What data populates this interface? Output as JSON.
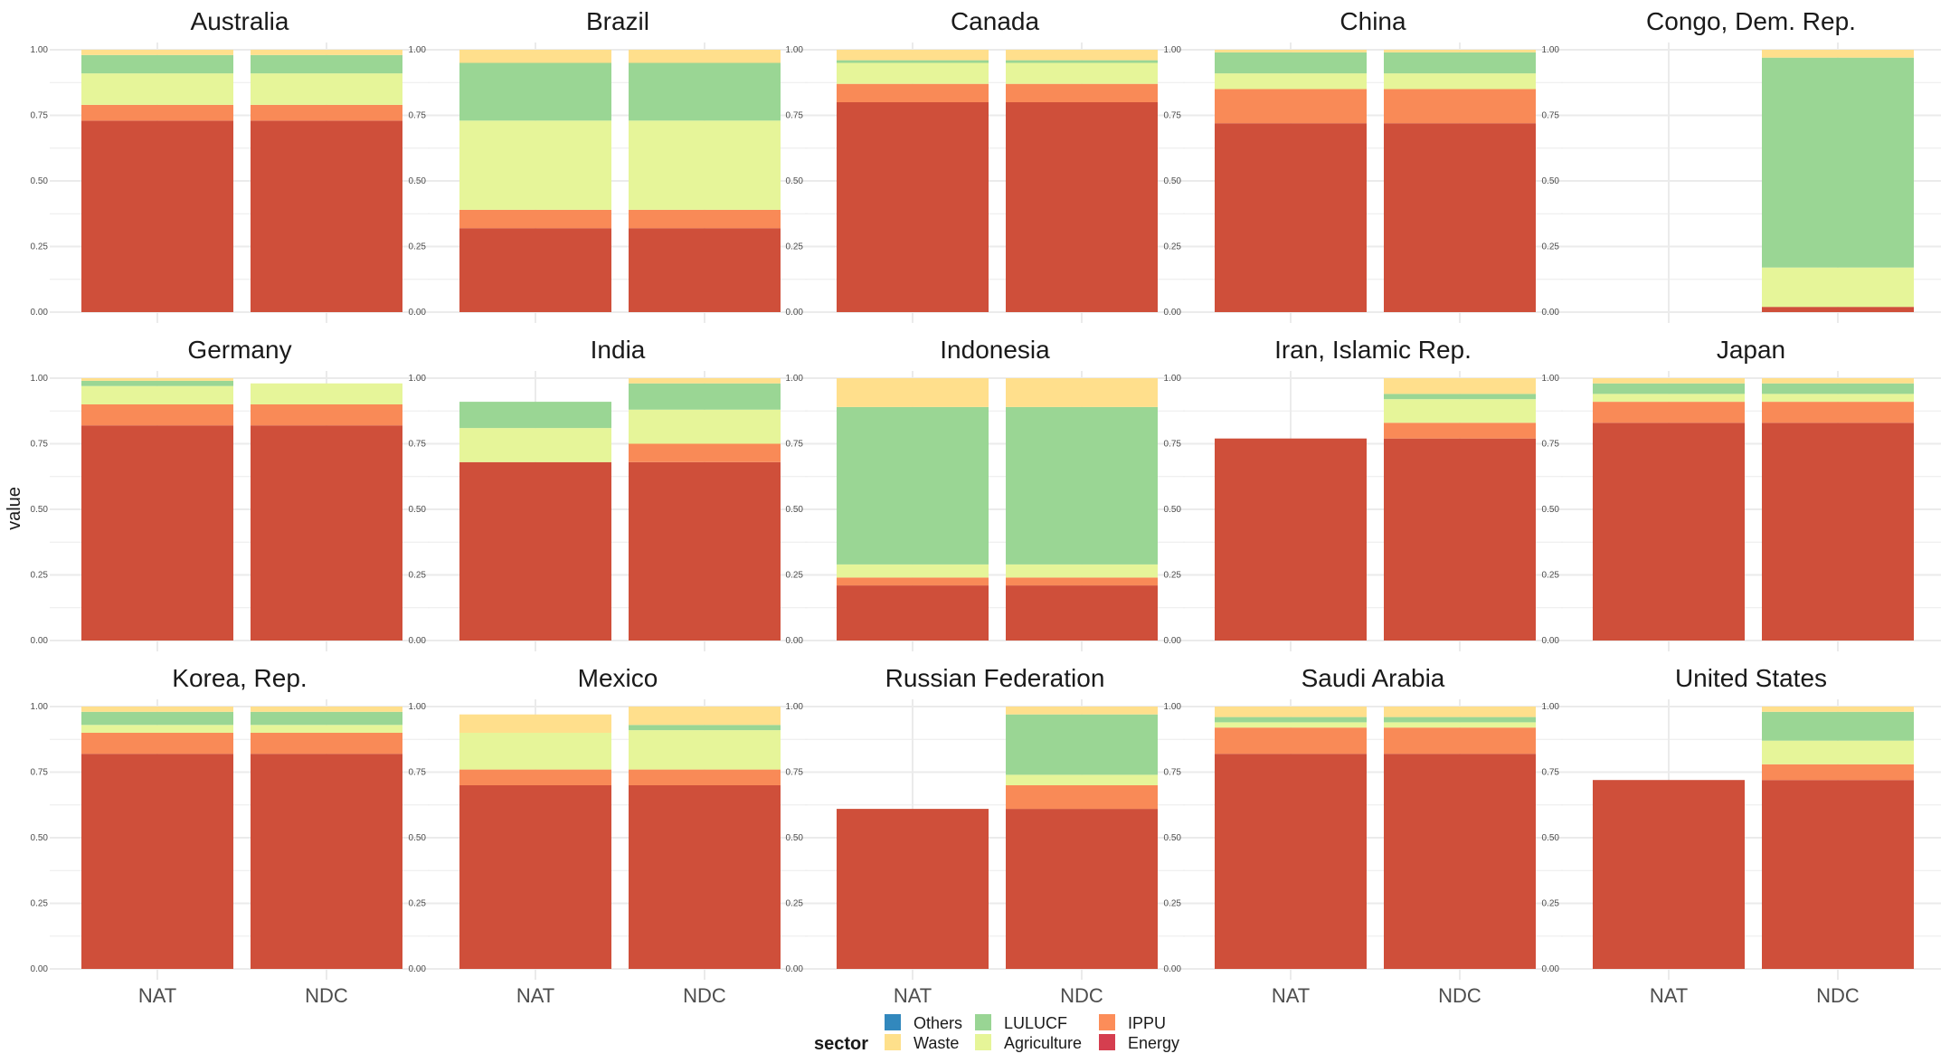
{
  "chart_data": {
    "type": "bar",
    "stacked": true,
    "facet_layout": "5 columns x 3 rows",
    "ylabel": "value",
    "ylim": [
      0,
      1
    ],
    "y_ticks": [
      "0.00",
      "0.25",
      "0.50",
      "0.75",
      "1.00"
    ],
    "x_categories": [
      "NAT",
      "NDC"
    ],
    "grid": true,
    "legend": {
      "title": "sector",
      "position": "bottom",
      "items": [
        {
          "key": "Others",
          "label": "Others",
          "color": "#3288BD"
        },
        {
          "key": "Waste",
          "label": "Waste",
          "color": "#FEE08B"
        },
        {
          "key": "LULUCF",
          "label": "LULUCF",
          "color": "#99D594"
        },
        {
          "key": "Agriculture",
          "label": "Agriculture",
          "color": "#E6F598"
        },
        {
          "key": "IPPU",
          "label": "IPPU",
          "color": "#FC8D59"
        },
        {
          "key": "Energy",
          "label": "Energy",
          "color": "#D53E4F"
        }
      ]
    },
    "stack_order_bottom_to_top": [
      "Energy",
      "IPPU",
      "Agriculture",
      "LULUCF",
      "Waste",
      "Others"
    ],
    "colors": {
      "Energy": "#CF4F3A",
      "IPPU": "#F98A57",
      "Agriculture": "#E6F599",
      "LULUCF": "#9AD694",
      "Waste": "#FFDF8C",
      "Others": "#3288BD"
    },
    "facets": [
      {
        "title": "Australia",
        "NAT": {
          "Energy": 0.73,
          "IPPU": 0.06,
          "Agriculture": 0.12,
          "LULUCF": 0.07,
          "Waste": 0.02
        },
        "NDC": {
          "Energy": 0.73,
          "IPPU": 0.06,
          "Agriculture": 0.12,
          "LULUCF": 0.07,
          "Waste": 0.02
        }
      },
      {
        "title": "Brazil",
        "NAT": {
          "Energy": 0.32,
          "IPPU": 0.07,
          "Agriculture": 0.34,
          "LULUCF": 0.22,
          "Waste": 0.05
        },
        "NDC": {
          "Energy": 0.32,
          "IPPU": 0.07,
          "Agriculture": 0.34,
          "LULUCF": 0.22,
          "Waste": 0.05
        }
      },
      {
        "title": "Canada",
        "NAT": {
          "Energy": 0.8,
          "IPPU": 0.07,
          "Agriculture": 0.08,
          "LULUCF": 0.01,
          "Waste": 0.04
        },
        "NDC": {
          "Energy": 0.8,
          "IPPU": 0.07,
          "Agriculture": 0.08,
          "LULUCF": 0.01,
          "Waste": 0.04
        }
      },
      {
        "title": "China",
        "NAT": {
          "Energy": 0.72,
          "IPPU": 0.13,
          "Agriculture": 0.06,
          "LULUCF": 0.08,
          "Waste": 0.01
        },
        "NDC": {
          "Energy": 0.72,
          "IPPU": 0.13,
          "Agriculture": 0.06,
          "LULUCF": 0.08,
          "Waste": 0.01
        }
      },
      {
        "title": "Congo, Dem. Rep.",
        "NAT": {},
        "NDC": {
          "Energy": 0.02,
          "IPPU": 0.0,
          "Agriculture": 0.15,
          "LULUCF": 0.8,
          "Waste": 0.03
        }
      },
      {
        "title": "Germany",
        "NAT": {
          "Energy": 0.82,
          "IPPU": 0.08,
          "Agriculture": 0.07,
          "LULUCF": 0.02,
          "Waste": 0.01
        },
        "NDC": {
          "Energy": 0.82,
          "IPPU": 0.08,
          "Agriculture": 0.08,
          "LULUCF": 0.0,
          "Waste": 0.0
        }
      },
      {
        "title": "India",
        "NAT": {
          "Energy": 0.68,
          "IPPU": 0.0,
          "Agriculture": 0.13,
          "LULUCF": 0.1,
          "Waste": 0.0
        },
        "NDC": {
          "Energy": 0.68,
          "IPPU": 0.07,
          "Agriculture": 0.13,
          "LULUCF": 0.1,
          "Waste": 0.02
        }
      },
      {
        "title": "Indonesia",
        "NAT": {
          "Energy": 0.21,
          "IPPU": 0.03,
          "Agriculture": 0.05,
          "LULUCF": 0.6,
          "Waste": 0.11
        },
        "NDC": {
          "Energy": 0.21,
          "IPPU": 0.03,
          "Agriculture": 0.05,
          "LULUCF": 0.6,
          "Waste": 0.11
        }
      },
      {
        "title": "Iran, Islamic Rep.",
        "NAT": {
          "Energy": 0.77
        },
        "NDC": {
          "Energy": 0.77,
          "IPPU": 0.06,
          "Agriculture": 0.09,
          "LULUCF": 0.02,
          "Waste": 0.06
        }
      },
      {
        "title": "Japan",
        "NAT": {
          "Energy": 0.83,
          "IPPU": 0.08,
          "Agriculture": 0.03,
          "LULUCF": 0.04,
          "Waste": 0.02
        },
        "NDC": {
          "Energy": 0.83,
          "IPPU": 0.08,
          "Agriculture": 0.03,
          "LULUCF": 0.04,
          "Waste": 0.02
        }
      },
      {
        "title": "Korea, Rep.",
        "NAT": {
          "Energy": 0.82,
          "IPPU": 0.08,
          "Agriculture": 0.03,
          "LULUCF": 0.05,
          "Waste": 0.02
        },
        "NDC": {
          "Energy": 0.82,
          "IPPU": 0.08,
          "Agriculture": 0.03,
          "LULUCF": 0.05,
          "Waste": 0.02
        }
      },
      {
        "title": "Mexico",
        "NAT": {
          "Energy": 0.7,
          "IPPU": 0.06,
          "Agriculture": 0.14,
          "LULUCF": 0.0,
          "Waste": 0.07
        },
        "NDC": {
          "Energy": 0.7,
          "IPPU": 0.06,
          "Agriculture": 0.15,
          "LULUCF": 0.02,
          "Waste": 0.07
        }
      },
      {
        "title": "Russian Federation",
        "NAT": {
          "Energy": 0.61
        },
        "NDC": {
          "Energy": 0.61,
          "IPPU": 0.09,
          "Agriculture": 0.04,
          "LULUCF": 0.23,
          "Waste": 0.03
        }
      },
      {
        "title": "Saudi Arabia",
        "NAT": {
          "Energy": 0.82,
          "IPPU": 0.1,
          "Agriculture": 0.02,
          "LULUCF": 0.02,
          "Waste": 0.04
        },
        "NDC": {
          "Energy": 0.82,
          "IPPU": 0.1,
          "Agriculture": 0.02,
          "LULUCF": 0.02,
          "Waste": 0.04
        }
      },
      {
        "title": "United States",
        "NAT": {
          "Energy": 0.72
        },
        "NDC": {
          "Energy": 0.72,
          "IPPU": 0.06,
          "Agriculture": 0.09,
          "LULUCF": 0.11,
          "Waste": 0.02
        }
      }
    ]
  }
}
